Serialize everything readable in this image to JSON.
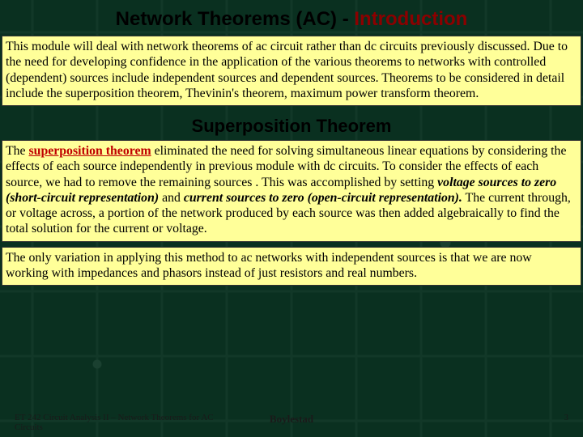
{
  "title_prefix": "Network Theorems (AC) - ",
  "title_intro": "Introduction",
  "box1": "This module will deal with network theorems of ac circuit rather than dc circuits previously discussed. Due to the need for developing confidence in the application of the various theorems to networks with controlled (dependent) sources include independent sources and dependent sources. Theorems to be considered in detail include the superposition theorem, Thevinin's theorem, maximum power transform theorem.",
  "sub_title": "Superposition Theorem",
  "box2_pre": "The ",
  "box2_term": "superposition theorem",
  "box2_mid1": " eliminated the need for solving simultaneous linear equations by considering the effects of each source independently in previous module with dc circuits. To consider the effects of each source, we had to remove the remaining sources . This was accomplished by setting ",
  "box2_em1": "voltage sources to zero (short-circuit representation)",
  "box2_mid2": " and ",
  "box2_em2": "current sources to zero (open-circuit representation).",
  "box2_tail": " The current through, or voltage across, a portion of the network produced by each source was then added algebraically to find the total solution for the current or voltage.",
  "box3": "The only variation in applying this method to ac networks with independent sources is that we are now working with impedances and phasors instead of just resistors and real numbers.",
  "footer_course": "ET 242 Circuit Analysis II – Network Theorems for AC Circuits",
  "footer_author": "Boylestad",
  "footer_page": "3"
}
